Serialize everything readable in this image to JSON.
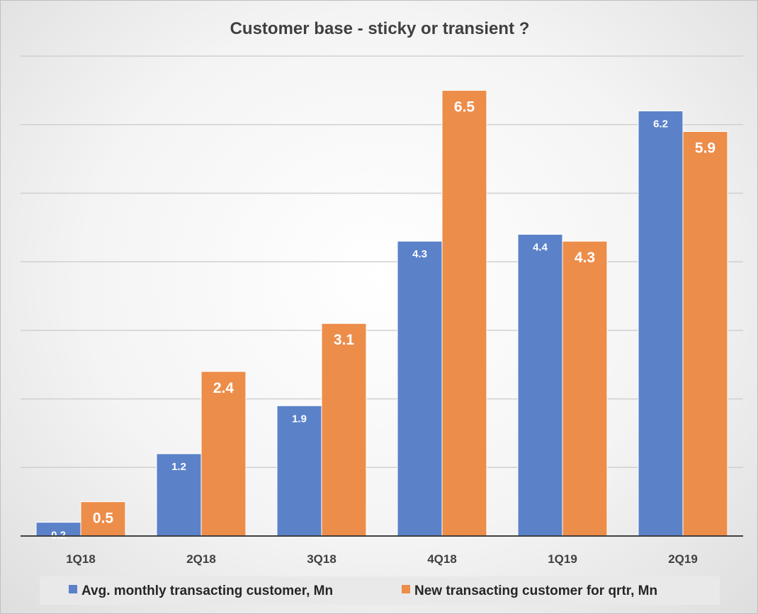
{
  "chart_data": {
    "type": "bar",
    "title": "Customer base - sticky or transient ?",
    "categories": [
      "1Q18",
      "2Q18",
      "3Q18",
      "4Q18",
      "1Q19",
      "2Q19"
    ],
    "series": [
      {
        "name": "Avg. monthly transacting customer, Mn",
        "color": "#5b82c9",
        "values": [
          0.2,
          1.2,
          1.9,
          4.3,
          4.4,
          6.2
        ],
        "labels": [
          "0.2",
          "1.2",
          "1.9",
          "4.3",
          "4.4",
          "6.2"
        ]
      },
      {
        "name": "New transacting customer for qrtr, Mn",
        "color": "#ed8d4a",
        "values": [
          0.5,
          2.4,
          3.1,
          6.5,
          4.3,
          5.9
        ],
        "labels": [
          "0.5",
          "2.4",
          "3.1",
          "6.5",
          "4.3",
          "5.9"
        ]
      }
    ],
    "ylim": [
      0,
      7
    ],
    "grid": true,
    "legend": "bottom",
    "xlabel": "",
    "ylabel": ""
  }
}
